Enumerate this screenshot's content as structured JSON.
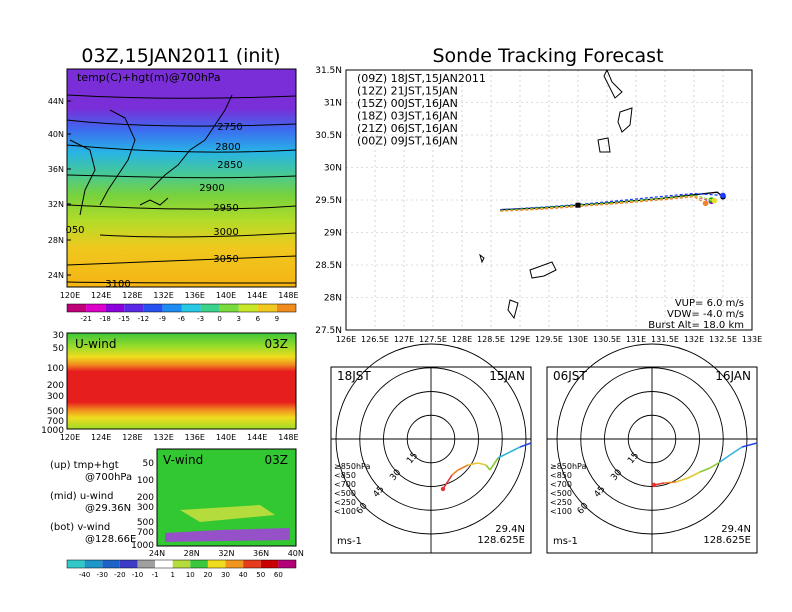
{
  "left_title": "03Z,15JAN2011 (init)",
  "right_title": "Sonde Tracking Forecast",
  "map_panel": {
    "label": "temp(C)+hgt(m)@700hPa",
    "lat_ticks": [
      "44N",
      "40N",
      "36N",
      "32N",
      "28N",
      "24N"
    ],
    "lon_ticks": [
      "120E",
      "124E",
      "128E",
      "132E",
      "136E",
      "140E",
      "144E",
      "148E"
    ],
    "contours": [
      "2750",
      "2800",
      "2850",
      "2900",
      "2950",
      "3000",
      "3050",
      "3100",
      "050"
    ]
  },
  "colorbar_temp": [
    "-21",
    "-18",
    "-15",
    "-12",
    "-9",
    "-6",
    "-3",
    "0",
    "3",
    "6",
    "9"
  ],
  "u_panel": {
    "label": "U-wind",
    "time": "03Z",
    "p_ticks": [
      "30",
      "50",
      "100",
      "200",
      "300",
      "500",
      "700",
      "1000"
    ],
    "lon_ticks": [
      "120E",
      "124E",
      "128E",
      "132E",
      "136E",
      "140E",
      "144E",
      "148E"
    ]
  },
  "v_panel": {
    "label": "V-wind",
    "time": "03Z",
    "p_ticks": [
      "50",
      "100",
      "200",
      "300",
      "500",
      "700",
      "1000"
    ],
    "lat_ticks": [
      "24N",
      "28N",
      "32N",
      "36N",
      "40N"
    ]
  },
  "side_notes": [
    {
      "a": "(up) tmp+hgt",
      "b": "@700hPa"
    },
    {
      "a": "(mid) u-wind",
      "b": "@29.36N"
    },
    {
      "a": "(bot) v-wind",
      "b": "@128.66E"
    }
  ],
  "colorbar_wind": [
    "-40",
    "-30",
    "-20",
    "-10",
    "-1",
    "1",
    "10",
    "20",
    "30",
    "40",
    "50",
    "60"
  ],
  "track_map": {
    "lat_ticks": [
      "31.5N",
      "31N",
      "30.5N",
      "30N",
      "29.5N",
      "29N",
      "28.5N",
      "28N",
      "27.5N"
    ],
    "lon_ticks": [
      "126E",
      "126.5E",
      "127E",
      "127.5E",
      "128E",
      "128.5E",
      "129E",
      "129.5E",
      "130E",
      "130.5E",
      "131E",
      "131.5E",
      "132E",
      "132.5E",
      "133E"
    ],
    "legend": [
      {
        "text": "(09Z)  18JST,15JAN2011",
        "color": "#000000"
      },
      {
        "text": "(12Z)  21JST,15JAN",
        "color": "#a000c8"
      },
      {
        "text": "(15Z)  00JST,16JAN",
        "color": "#1e3cff"
      },
      {
        "text": "(18Z)  03JST,16JAN",
        "color": "#00b400"
      },
      {
        "text": "(21Z)  06JST,16JAN",
        "color": "#e6dc32"
      },
      {
        "text": "(00Z)  09JST,16JAN",
        "color": "#f08228"
      }
    ],
    "info": [
      "VUP= 6.0 m/s",
      "VDW= -4.0 m/s",
      "Burst Alt= 18.0 km"
    ]
  },
  "chart_data": [
    {
      "type": "line",
      "title": "Sonde Tracking Forecast",
      "xlim": [
        126,
        133
      ],
      "ylim": [
        27.5,
        31.5
      ],
      "series": [
        {
          "name": "(09Z) 18JST,15JAN2011",
          "x": [
            128.66,
            129.4,
            130.0,
            130.6,
            131.4,
            132.0,
            132.4,
            132.5
          ],
          "y": [
            29.35,
            29.38,
            29.42,
            29.46,
            29.52,
            29.58,
            29.62,
            29.55
          ]
        },
        {
          "name": "(12Z) 21JST,15JAN",
          "x": [
            128.66,
            129.4,
            130.0,
            130.6,
            131.4,
            132.0,
            132.3
          ],
          "y": [
            29.34,
            29.37,
            29.41,
            29.45,
            29.51,
            29.56,
            29.48
          ]
        },
        {
          "name": "(15Z) 00JST,16JAN",
          "x": [
            128.66,
            129.4,
            130.0,
            130.6,
            131.4,
            132.0,
            132.5
          ],
          "y": [
            29.35,
            29.39,
            29.43,
            29.48,
            29.55,
            29.6,
            29.57
          ]
        },
        {
          "name": "(18Z) 03JST,16JAN",
          "x": [
            128.66,
            129.4,
            130.0,
            130.6,
            131.4,
            132.0,
            132.3
          ],
          "y": [
            29.34,
            29.38,
            29.42,
            29.46,
            29.52,
            29.57,
            29.5
          ]
        },
        {
          "name": "(21Z) 06JST,16JAN",
          "x": [
            128.66,
            129.4,
            130.0,
            130.6,
            131.4,
            132.0,
            132.35
          ],
          "y": [
            29.33,
            29.37,
            29.41,
            29.45,
            29.51,
            29.56,
            29.49
          ]
        },
        {
          "name": "(00Z) 09JST,16JAN",
          "x": [
            128.66,
            129.4,
            130.0,
            130.6,
            131.4,
            132.0,
            132.2
          ],
          "y": [
            29.33,
            29.36,
            29.4,
            29.44,
            29.5,
            29.55,
            29.45
          ]
        }
      ]
    }
  ],
  "hodographs": [
    {
      "time": "18JST",
      "date": "15JAN",
      "lat": "29.4N",
      "lon": "128.625E",
      "unit": "ms-1",
      "rings": [
        "15",
        "30",
        "45",
        "60"
      ],
      "levels": [
        {
          "text": "≥850hPa",
          "color": "#e63232"
        },
        {
          "text": "<850",
          "color": "#f08228"
        },
        {
          "text": "<700",
          "color": "#e6c832"
        },
        {
          "text": "<500",
          "color": "#8cc832"
        },
        {
          "text": "<250",
          "color": "#32b4dc"
        },
        {
          "text": "<100",
          "color": "#2846dc"
        }
      ]
    },
    {
      "time": "06JST",
      "date": "16JAN",
      "lat": "29.4N",
      "lon": "128.625E",
      "unit": "ms-1",
      "rings": [
        "15",
        "30",
        "45",
        "60"
      ],
      "levels": [
        {
          "text": "≥850hPa",
          "color": "#e63232"
        },
        {
          "text": "<850",
          "color": "#f08228"
        },
        {
          "text": "<700",
          "color": "#e6c832"
        },
        {
          "text": "<500",
          "color": "#8cc832"
        },
        {
          "text": "<250",
          "color": "#32b4dc"
        },
        {
          "text": "<100",
          "color": "#2846dc"
        }
      ]
    }
  ]
}
